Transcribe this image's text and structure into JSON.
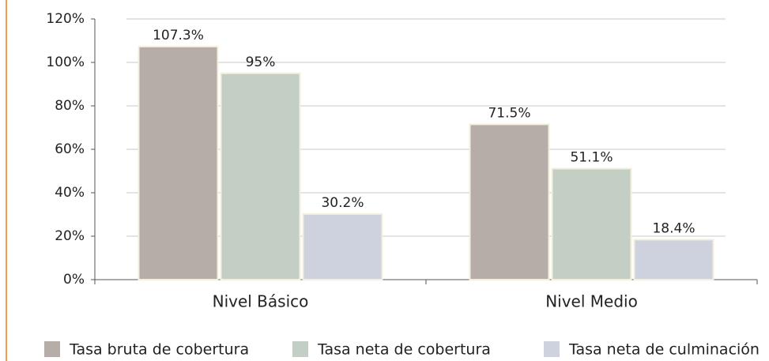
{
  "chart_data": {
    "type": "bar",
    "categories": [
      "Nivel Básico",
      "Nivel Medio"
    ],
    "series": [
      {
        "name": "Tasa bruta de cobertura",
        "color": "#b6aca8",
        "values": [
          107.3,
          71.5
        ],
        "value_labels": [
          "107.3%",
          "71.5%"
        ]
      },
      {
        "name": "Tasa neta de cobertura",
        "color": "#c3cec5",
        "values": [
          95,
          51.1
        ],
        "value_labels": [
          "95%",
          "51.1%"
        ]
      },
      {
        "name": "Tasa neta de culminación",
        "color": "#cdd2de",
        "values": [
          30.2,
          18.4
        ],
        "value_labels": [
          "30.2%",
          "18.4%"
        ]
      }
    ],
    "ylim": [
      0,
      120
    ],
    "yticks": [
      {
        "value": 0,
        "label": "0%"
      },
      {
        "value": 20,
        "label": "20%"
      },
      {
        "value": 40,
        "label": "40%"
      },
      {
        "value": 60,
        "label": "60%"
      },
      {
        "value": 80,
        "label": "80%"
      },
      {
        "value": 100,
        "label": "100%"
      },
      {
        "value": 120,
        "label": "120%"
      }
    ],
    "grid": true
  }
}
